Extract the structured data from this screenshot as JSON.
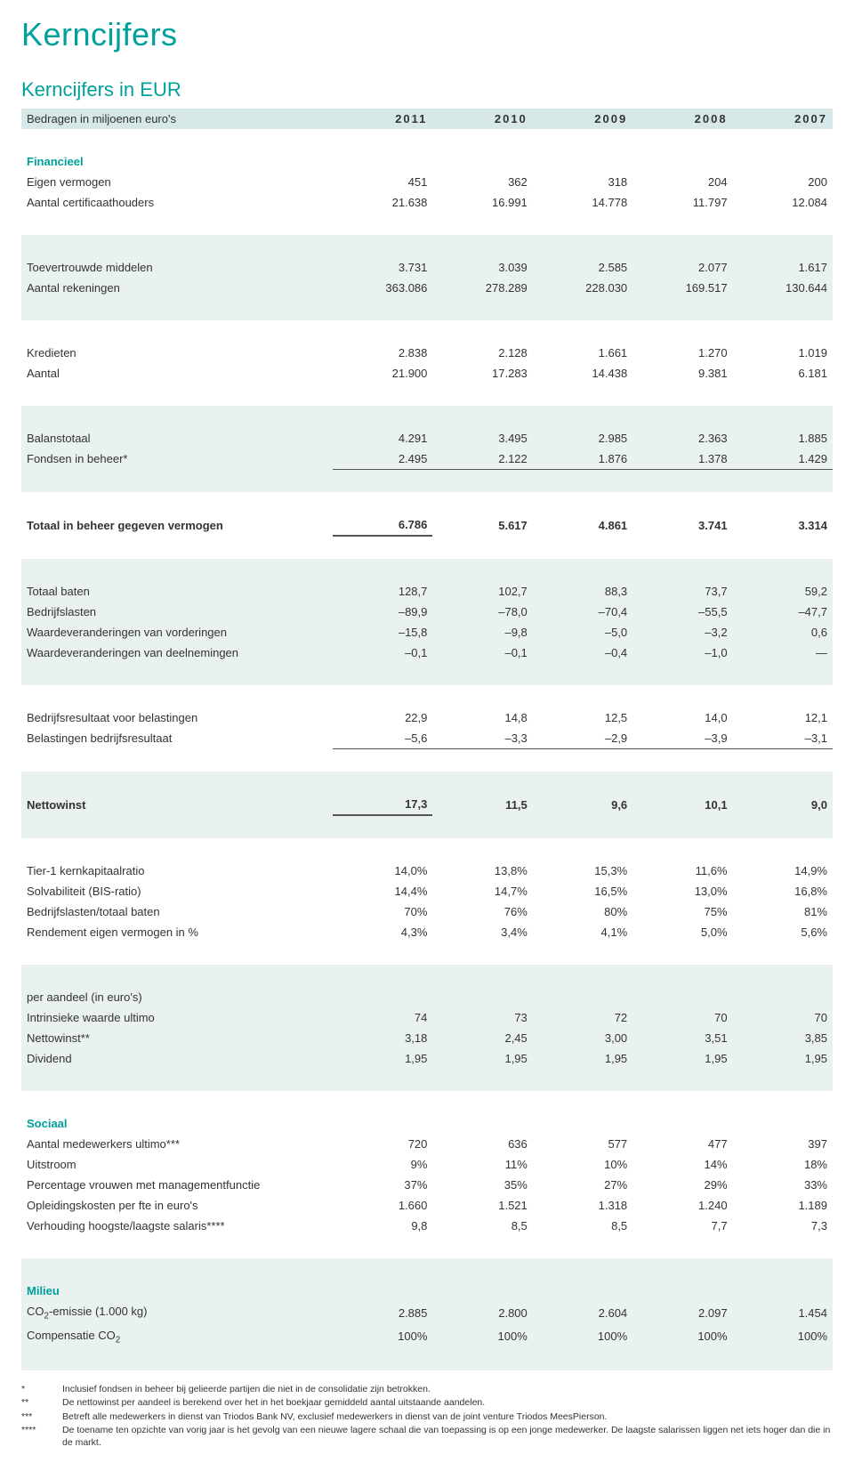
{
  "title": "Kerncijfers",
  "subtitle": "Kerncijfers in EUR",
  "header": {
    "label": "Bedragen in miljoenen euro's",
    "cols": [
      "2011",
      "2010",
      "2009",
      "2008",
      "2007"
    ]
  },
  "groups": [
    {
      "shade": false,
      "section": "Financieel",
      "rows": [
        {
          "label": "Eigen vermogen",
          "v": [
            "451",
            "362",
            "318",
            "204",
            "200"
          ]
        },
        {
          "label": "Aantal certificaathouders",
          "v": [
            "21.638",
            "16.991",
            "14.778",
            "11.797",
            "12.084"
          ]
        }
      ]
    },
    {
      "shade": true,
      "rows": [
        {
          "label": "Toevertrouwde middelen",
          "v": [
            "3.731",
            "3.039",
            "2.585",
            "2.077",
            "1.617"
          ]
        },
        {
          "label": "Aantal rekeningen",
          "v": [
            "363.086",
            "278.289",
            "228.030",
            "169.517",
            "130.644"
          ]
        }
      ]
    },
    {
      "shade": false,
      "rows": [
        {
          "label": "Kredieten",
          "v": [
            "2.838",
            "2.128",
            "1.661",
            "1.270",
            "1.019"
          ]
        },
        {
          "label": "Aantal",
          "v": [
            "21.900",
            "17.283",
            "14.438",
            "9.381",
            "6.181"
          ]
        }
      ]
    },
    {
      "shade": true,
      "rows": [
        {
          "label": "Balanstotaal",
          "v": [
            "4.291",
            "3.495",
            "2.985",
            "2.363",
            "1.885"
          ]
        },
        {
          "label": "Fondsen in beheer*",
          "v": [
            "2.495",
            "2.122",
            "1.876",
            "1.378",
            "1.429"
          ],
          "thin": true
        }
      ]
    },
    {
      "shade": false,
      "rows": [
        {
          "label": "Totaal in beheer gegeven vermogen",
          "v": [
            "6.786",
            "5.617",
            "4.861",
            "3.741",
            "3.314"
          ],
          "bold": true,
          "thick": true
        }
      ]
    },
    {
      "shade": true,
      "rows": [
        {
          "label": "Totaal baten",
          "v": [
            "128,7",
            "102,7",
            "88,3",
            "73,7",
            "59,2"
          ]
        },
        {
          "label": "Bedrijfslasten",
          "v": [
            "–89,9",
            "–78,0",
            "–70,4",
            "–55,5",
            "–47,7"
          ]
        },
        {
          "label": "Waardeveranderingen van vorderingen",
          "v": [
            "–15,8",
            "–9,8",
            "–5,0",
            "–3,2",
            "0,6"
          ]
        },
        {
          "label": "Waardeveranderingen van deelnemingen",
          "v": [
            "–0,1",
            "–0,1",
            "–0,4",
            "–1,0",
            "—"
          ]
        }
      ]
    },
    {
      "shade": false,
      "rows": [
        {
          "label": "Bedrijfsresultaat voor belastingen",
          "v": [
            "22,9",
            "14,8",
            "12,5",
            "14,0",
            "12,1"
          ]
        },
        {
          "label": "Belastingen bedrijfsresultaat",
          "v": [
            "–5,6",
            "–3,3",
            "–2,9",
            "–3,9",
            "–3,1"
          ],
          "thin": true
        }
      ]
    },
    {
      "shade": true,
      "rows": [
        {
          "label": "Nettowinst",
          "v": [
            "17,3",
            "11,5",
            "9,6",
            "10,1",
            "9,0"
          ],
          "bold": true,
          "thick": true
        }
      ]
    },
    {
      "shade": false,
      "rows": [
        {
          "label": "Tier-1 kernkapitaalratio",
          "v": [
            "14,0%",
            "13,8%",
            "15,3%",
            "11,6%",
            "14,9%"
          ]
        },
        {
          "label": "Solvabiliteit (BIS-ratio)",
          "v": [
            "14,4%",
            "14,7%",
            "16,5%",
            "13,0%",
            "16,8%"
          ]
        },
        {
          "label": "Bedrijfslasten/totaal baten",
          "v": [
            "70%",
            "76%",
            "80%",
            "75%",
            "81%"
          ]
        },
        {
          "label": "Rendement eigen vermogen in %",
          "v": [
            "4,3%",
            "3,4%",
            "4,1%",
            "5,0%",
            "5,6%"
          ]
        }
      ]
    },
    {
      "shade": true,
      "rows": [
        {
          "label": "per aandeel (in euro's)",
          "v": [
            "",
            "",
            "",
            "",
            ""
          ]
        },
        {
          "label": "Intrinsieke waarde ultimo",
          "v": [
            "74",
            "73",
            "72",
            "70",
            "70"
          ]
        },
        {
          "label": "Nettowinst**",
          "v": [
            "3,18",
            "2,45",
            "3,00",
            "3,51",
            "3,85"
          ]
        },
        {
          "label": "Dividend",
          "v": [
            "1,95",
            "1,95",
            "1,95",
            "1,95",
            "1,95"
          ]
        }
      ]
    },
    {
      "shade": false,
      "section": "Sociaal",
      "rows": [
        {
          "label": "Aantal medewerkers ultimo***",
          "v": [
            "720",
            "636",
            "577",
            "477",
            "397"
          ]
        },
        {
          "label": "Uitstroom",
          "v": [
            "9%",
            "11%",
            "10%",
            "14%",
            "18%"
          ]
        },
        {
          "label": "Percentage vrouwen met managementfunctie",
          "v": [
            "37%",
            "35%",
            "27%",
            "29%",
            "33%"
          ]
        },
        {
          "label": "Opleidingskosten per fte in euro's",
          "v": [
            "1.660",
            "1.521",
            "1.318",
            "1.240",
            "1.189"
          ]
        },
        {
          "label": "Verhouding hoogste/laagste salaris****",
          "v": [
            "9,8",
            "8,5",
            "8,5",
            "7,7",
            "7,3"
          ]
        }
      ]
    },
    {
      "shade": true,
      "section": "Milieu",
      "rows": [
        {
          "label": "CO<sub>2</sub>-emissie (1.000 kg)",
          "v": [
            "2.885",
            "2.800",
            "2.604",
            "2.097",
            "1.454"
          ]
        },
        {
          "label": "Compensatie CO<sub>2</sub>",
          "v": [
            "100%",
            "100%",
            "100%",
            "100%",
            "100%"
          ]
        }
      ]
    }
  ],
  "footnotes": [
    {
      "mark": "*",
      "text": "Inclusief fondsen in beheer bij gelieerde partijen die niet in de consolidatie zijn betrokken."
    },
    {
      "mark": "**",
      "text": "De nettowinst per aandeel is berekend over het in het boekjaar gemiddeld aantal uitstaande aandelen."
    },
    {
      "mark": "***",
      "text": "Betreft alle medewerkers in dienst van Triodos Bank NV, exclusief medewerkers in dienst van de joint venture Triodos MeesPierson."
    },
    {
      "mark": "****",
      "text": "De toename ten opzichte van vorig jaar is het gevolg van een nieuwe lagere schaal die van toepassing is op een jonge medewerker. De laagste salarissen liggen net iets hoger dan die in de markt."
    }
  ]
}
